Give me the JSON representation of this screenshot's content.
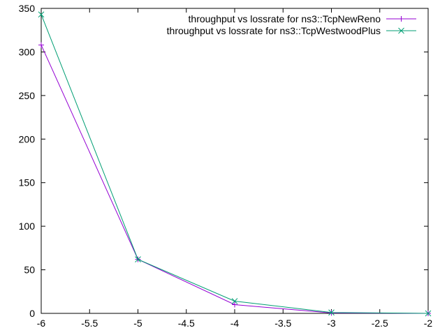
{
  "chart_data": {
    "type": "line",
    "xlim": [
      -6,
      -2
    ],
    "ylim": [
      0,
      350
    ],
    "x_ticks": [
      -6,
      -5.5,
      -5,
      -4.5,
      -4,
      -3.5,
      -3,
      -2.5,
      -2
    ],
    "x_tick_labels": [
      "-6",
      "-5.5",
      "-5",
      "-4.5",
      "-4",
      "-3.5",
      "-3",
      "-2.5",
      "-2"
    ],
    "y_ticks": [
      0,
      50,
      100,
      150,
      200,
      250,
      300,
      350
    ],
    "y_tick_labels": [
      "0",
      "50",
      "100",
      "150",
      "200",
      "250",
      "300",
      "350"
    ],
    "grid": false,
    "legend_position": "top-right",
    "series": [
      {
        "name": "throughput vs lossrate for ns3::TcpNewReno",
        "color": "#9400d3",
        "marker": "plus",
        "x": [
          -6,
          -5,
          -4,
          -3,
          -2
        ],
        "y": [
          308,
          62,
          10,
          0.5,
          0
        ]
      },
      {
        "name": "throughput vs lossrate for ns3::TcpWestwoodPlus",
        "color": "#009e73",
        "marker": "cross",
        "x": [
          -6,
          -5,
          -4,
          -3,
          -2
        ],
        "y": [
          343,
          62,
          14,
          1,
          0
        ]
      }
    ]
  }
}
